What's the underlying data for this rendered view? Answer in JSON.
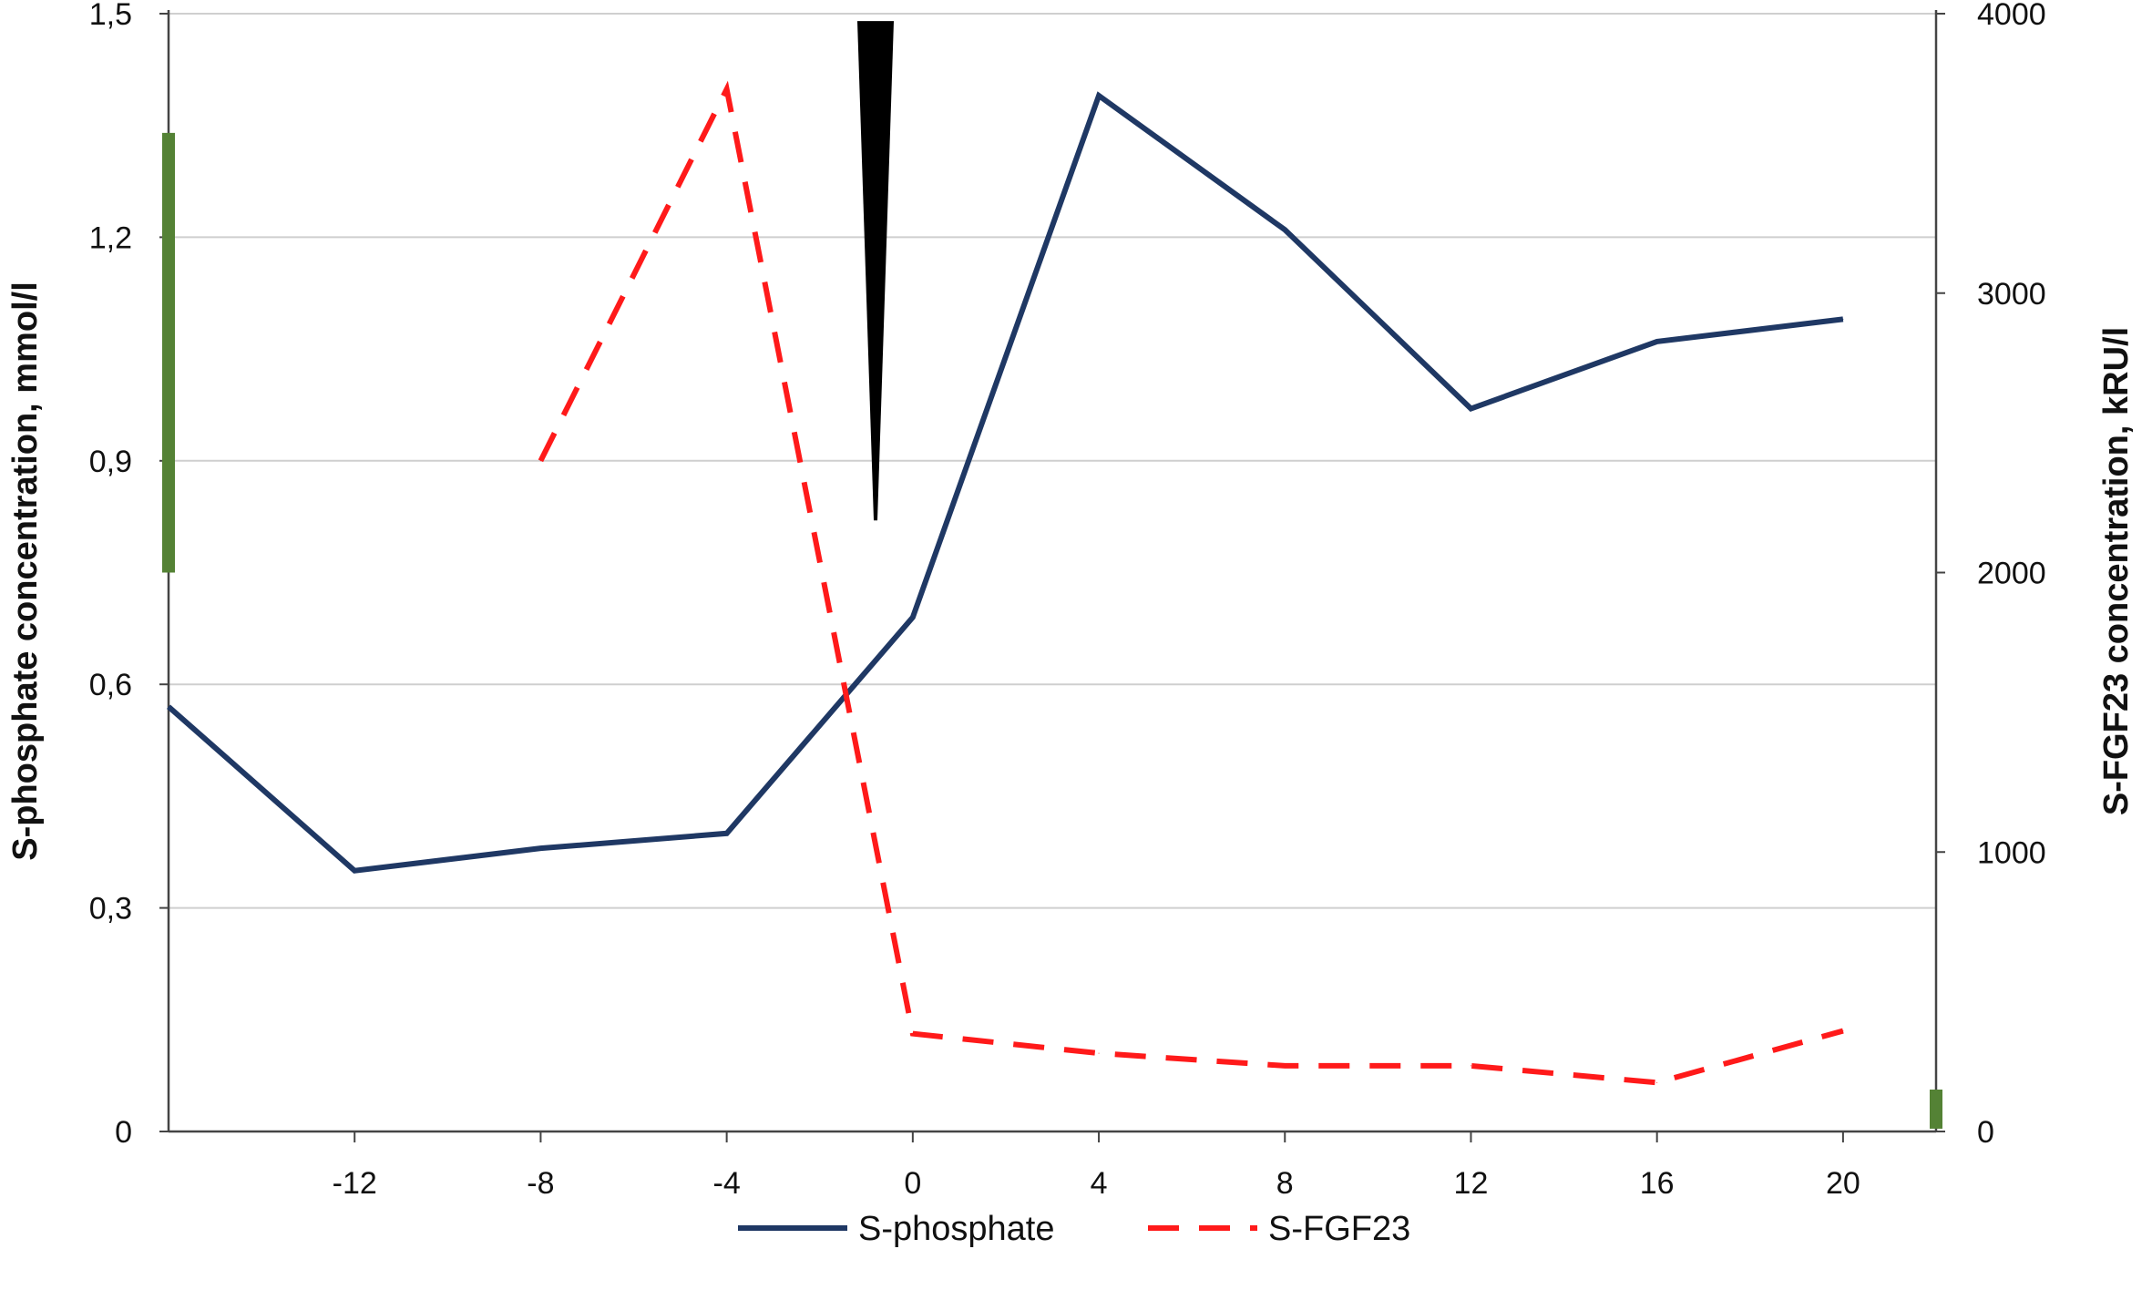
{
  "chart_data": {
    "type": "line",
    "title": "",
    "xlabel": "",
    "ylabel_left": "S-phosphate concentration, mmol/l",
    "ylabel_right": "S-FGF23 concentration, kRU/l",
    "xlim": [
      -16,
      22
    ],
    "ylim_left": [
      0,
      1.5
    ],
    "ylim_right": [
      0,
      4000
    ],
    "x_ticks": [
      -12,
      -8,
      -4,
      0,
      4,
      8,
      12,
      16,
      20
    ],
    "x_tick_labels": [
      "-12",
      "-8",
      "-4",
      "0",
      "4",
      "8",
      "12",
      "16",
      "20"
    ],
    "y_left_ticks": [
      0,
      0.3,
      0.6,
      0.9,
      1.2,
      1.5
    ],
    "y_left_tick_labels": [
      "0",
      "0,3",
      "0,6",
      "0,9",
      "1,2",
      "1,5"
    ],
    "y_right_ticks": [
      0,
      1000,
      2000,
      3000,
      4000
    ],
    "y_right_tick_labels": [
      "0",
      "1000",
      "2000",
      "3000",
      "4000"
    ],
    "grid": "horizontal",
    "legend_position": "bottom-center",
    "series": [
      {
        "name": "S-phosphate",
        "axis": "left",
        "style": "solid",
        "color": "#1f3864",
        "x": [
          -16,
          -12,
          -8,
          -4,
          0,
          4,
          8,
          12,
          16,
          20
        ],
        "y": [
          0.57,
          0.35,
          0.38,
          0.4,
          0.69,
          1.39,
          1.21,
          0.97,
          1.06,
          1.09
        ]
      },
      {
        "name": "S-FGF23",
        "axis": "right",
        "style": "dashed",
        "color": "#ff1a1a",
        "x": [
          -8,
          -4,
          0,
          4,
          8,
          12,
          16,
          20
        ],
        "y": [
          2400,
          3730,
          350,
          280,
          235,
          235,
          175,
          360
        ]
      }
    ],
    "annotations": [
      {
        "type": "arrow-wedge",
        "color": "#000000",
        "x": -0.8,
        "y_left_top": 1.49,
        "y_left_bottom": 0.82
      },
      {
        "type": "reference-range-bar",
        "axis": "left",
        "color": "#548235",
        "y_from": 0.75,
        "y_to": 1.34
      },
      {
        "type": "reference-range-bar",
        "axis": "right",
        "color": "#548235",
        "y_from": 10,
        "y_to": 150
      }
    ]
  }
}
